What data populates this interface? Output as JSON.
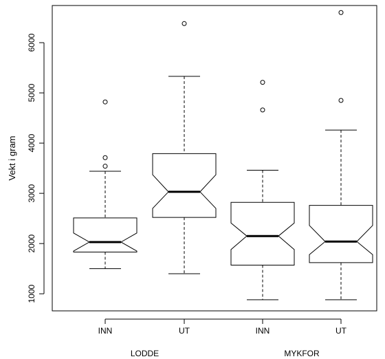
{
  "chart_data": {
    "type": "boxplot",
    "notched": true,
    "ylabel": "Vekt i gram",
    "ylim": [
      660,
      6740
    ],
    "yticks": [
      1000,
      2000,
      3000,
      4000,
      5000,
      6000
    ],
    "categories": [
      "INN",
      "UT",
      "INN",
      "UT"
    ],
    "groups": [
      {
        "label": "LODDE",
        "categories": [
          0,
          1
        ]
      },
      {
        "label": "MYKFOR",
        "categories": [
          2,
          3
        ]
      }
    ],
    "boxes": [
      {
        "category": "INN",
        "group": "LODDE",
        "whisker_low": 1500,
        "q1": 1830,
        "median": 2030,
        "q3": 2510,
        "whisker_high": 3440,
        "notch_low": 1850,
        "notch_high": 2210,
        "outliers": [
          3540,
          3710,
          4820
        ]
      },
      {
        "category": "UT",
        "group": "LODDE",
        "whisker_low": 1400,
        "q1": 2520,
        "median": 3030,
        "q3": 3790,
        "whisker_high": 5330,
        "notch_low": 2700,
        "notch_high": 3370,
        "outliers": [
          6380
        ]
      },
      {
        "category": "INN",
        "group": "MYKFOR",
        "whisker_low": 880,
        "q1": 1570,
        "median": 2150,
        "q3": 2820,
        "whisker_high": 3460,
        "notch_low": 1880,
        "notch_high": 2410,
        "outliers": [
          4660,
          5210
        ]
      },
      {
        "category": "UT",
        "group": "MYKFOR",
        "whisker_low": 880,
        "q1": 1620,
        "median": 2040,
        "q3": 2760,
        "whisker_high": 4260,
        "notch_low": 1780,
        "notch_high": 2360,
        "outliers": [
          4850,
          6600
        ]
      }
    ]
  }
}
